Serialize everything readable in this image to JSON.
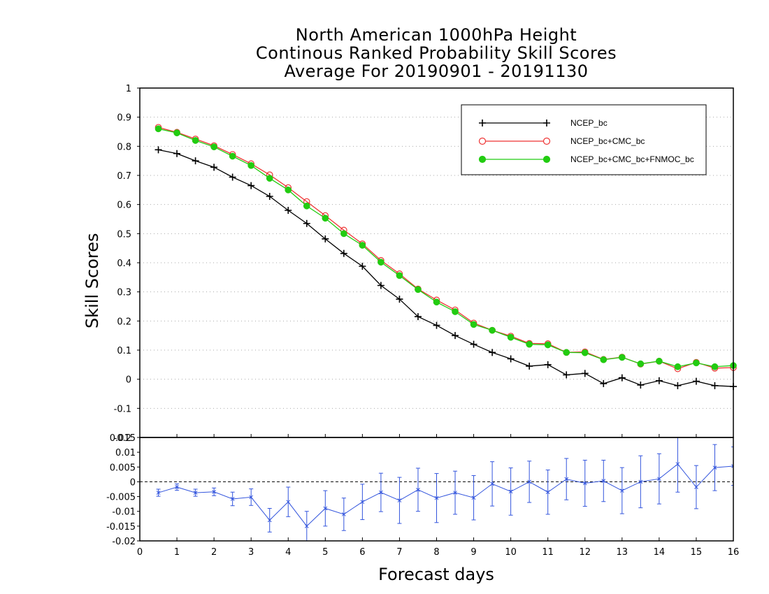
{
  "title": {
    "line1": "North American 1000hPa Height",
    "line2": "Continous Ranked Probability Skill Scores",
    "line3": "Average For 20190901 - 20191130"
  },
  "chart_data": [
    {
      "type": "line",
      "title": "North American 1000hPa Height / Continous Ranked Probability Skill Scores / Average For 20190901 - 20191130",
      "xlabel": "Forecast days",
      "ylabel": "Skill Scores",
      "xlim": [
        0,
        16
      ],
      "ylim": [
        -0.2,
        1
      ],
      "yticks": [
        "1",
        "0.9",
        "0.8",
        "0.7",
        "0.6",
        "0.5",
        "0.4",
        "0.3",
        "0.2",
        "0.1",
        "0",
        "-0.1",
        "-0.2"
      ],
      "grid": true,
      "legend_position": "top-right",
      "x": [
        0.5,
        1,
        1.5,
        2,
        2.5,
        3,
        3.5,
        4,
        4.5,
        5,
        5.5,
        6,
        6.5,
        7,
        7.5,
        8,
        8.5,
        9,
        9.5,
        10,
        10.5,
        11,
        11.5,
        12,
        12.5,
        13,
        13.5,
        14,
        14.5,
        15,
        15.5,
        16
      ],
      "series": [
        {
          "name": "NCEP_bc",
          "color": "#000000",
          "marker": "plus",
          "values": [
            0.788,
            0.775,
            0.75,
            0.728,
            0.694,
            0.665,
            0.628,
            0.58,
            0.535,
            0.482,
            0.432,
            0.388,
            0.322,
            0.275,
            0.215,
            0.185,
            0.15,
            0.12,
            0.092,
            0.07,
            0.045,
            0.05,
            0.015,
            0.02,
            -0.015,
            0.005,
            -0.02,
            -0.005,
            -0.022,
            -0.007,
            -0.022,
            -0.025
          ]
        },
        {
          "name": "NCEP_bc+CMC_bc",
          "color": "#ee3333",
          "marker": "open-circle",
          "values": [
            0.865,
            0.848,
            0.825,
            0.802,
            0.772,
            0.74,
            0.702,
            0.658,
            0.61,
            0.562,
            0.512,
            0.465,
            0.408,
            0.362,
            0.31,
            0.272,
            0.238,
            0.193,
            0.168,
            0.148,
            0.123,
            0.122,
            0.092,
            0.094,
            0.068,
            0.076,
            0.052,
            0.062,
            0.036,
            0.058,
            0.038,
            0.04
          ]
        },
        {
          "name": "NCEP_bc+CMC_bc+FNMOC_bc",
          "color": "#22cc11",
          "marker": "filled-circle",
          "values": [
            0.86,
            0.846,
            0.82,
            0.798,
            0.766,
            0.734,
            0.69,
            0.65,
            0.595,
            0.553,
            0.5,
            0.46,
            0.402,
            0.356,
            0.308,
            0.265,
            0.232,
            0.188,
            0.168,
            0.144,
            0.12,
            0.118,
            0.092,
            0.091,
            0.067,
            0.075,
            0.053,
            0.062,
            0.043,
            0.056,
            0.043,
            0.047
          ]
        }
      ]
    },
    {
      "type": "line",
      "xlabel": "Forecast days",
      "xlim": [
        0,
        16
      ],
      "xticks": [
        "0",
        "1",
        "2",
        "3",
        "4",
        "5",
        "6",
        "7",
        "8",
        "9",
        "10",
        "11",
        "12",
        "13",
        "14",
        "15",
        "16"
      ],
      "ylim": [
        -0.02,
        0.015
      ],
      "yticks": [
        "0.015",
        "0.01",
        "0.005",
        "0",
        "-0.005",
        "-0.01",
        "-0.015",
        "-0.02"
      ],
      "x": [
        0.5,
        1,
        1.5,
        2,
        2.5,
        3,
        3.5,
        4,
        4.5,
        5,
        5.5,
        6,
        6.5,
        7,
        7.5,
        8,
        8.5,
        9,
        9.5,
        10,
        10.5,
        11,
        11.5,
        12,
        12.5,
        13,
        13.5,
        14,
        14.5,
        15,
        15.5,
        16
      ],
      "series": [
        {
          "name": "",
          "color": "#3355dd",
          "marker": "error-bar",
          "values": [
            -0.0037,
            -0.0018,
            -0.0037,
            -0.0034,
            -0.0058,
            -0.0052,
            -0.013,
            -0.0068,
            -0.015,
            -0.009,
            -0.011,
            -0.0068,
            -0.0036,
            -0.0063,
            -0.0027,
            -0.0055,
            -0.0037,
            -0.0054,
            -0.0007,
            -0.0033,
            0.0,
            -0.0035,
            0.0009,
            -0.0005,
            0.0003,
            -0.003,
            0.0,
            0.001,
            0.006,
            -0.0018,
            0.0048,
            0.0053
          ],
          "error": [
            0.0012,
            0.0011,
            0.0012,
            0.0013,
            0.0023,
            0.0028,
            0.004,
            0.005,
            0.005,
            0.006,
            0.0055,
            0.006,
            0.0065,
            0.0078,
            0.0073,
            0.0083,
            0.0073,
            0.0075,
            0.0075,
            0.008,
            0.007,
            0.0075,
            0.007,
            0.0078,
            0.007,
            0.0078,
            0.0088,
            0.0085,
            0.0095,
            0.0073,
            0.0078,
            0.0065
          ]
        }
      ]
    }
  ]
}
